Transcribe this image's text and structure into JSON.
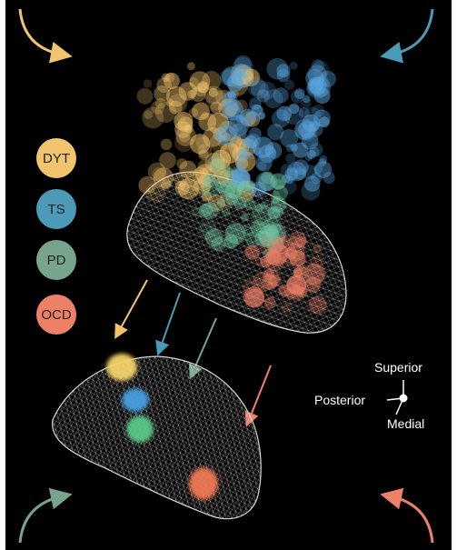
{
  "colors": {
    "background": "#000000",
    "DYT": "#f2c46e",
    "TS": "#4a9ab8",
    "PD": "#78a38d",
    "OCD": "#ef8068",
    "mesh": "#d8d8d8"
  },
  "legend": [
    {
      "key": "DYT",
      "label": "DYT"
    },
    {
      "key": "TS",
      "label": "TS"
    },
    {
      "key": "PD",
      "label": "PD"
    },
    {
      "key": "OCD",
      "label": "OCD"
    }
  ],
  "orientation": {
    "superior": "Superior",
    "posterior": "Posterior",
    "medial": "Medial"
  },
  "icons": {
    "corner_arrows": [
      "curved-arrow-icon",
      "curved-arrow-icon",
      "curved-arrow-icon",
      "curved-arrow-icon"
    ],
    "down_arrows": [
      "arrow-icon",
      "arrow-icon",
      "arrow-icon",
      "arrow-icon"
    ]
  }
}
